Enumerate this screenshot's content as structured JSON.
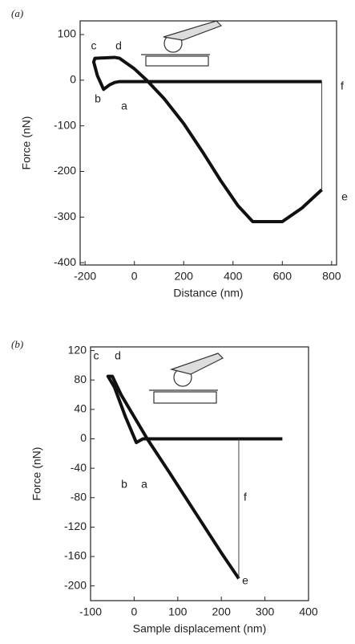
{
  "chart_data": [
    {
      "type": "line",
      "panel": "(a)",
      "xlabel": "Distance (nm)",
      "ylabel": "Force (nN)",
      "xlim": [
        -220,
        820
      ],
      "ylim": [
        -405,
        130
      ],
      "xticks": [
        -200,
        0,
        200,
        400,
        600,
        800
      ],
      "yticks": [
        -400,
        -300,
        -200,
        -100,
        0,
        100
      ],
      "series": [
        {
          "color": "#111111",
          "width": 4,
          "x": [
            760,
            400,
            100,
            -60,
            -80,
            -100,
            -125,
            -150,
            -165,
            -160,
            -80,
            -60,
            0,
            50,
            120,
            200,
            280,
            350,
            420,
            480,
            600,
            680,
            760
          ],
          "values": [
            -3,
            -3,
            -3,
            -3,
            -5,
            -10,
            -20,
            10,
            40,
            48,
            50,
            48,
            25,
            0,
            -40,
            -95,
            -160,
            -220,
            -275,
            -310,
            -310,
            -280,
            -240
          ]
        },
        {
          "color": "#444444",
          "width": 1,
          "x": [
            760,
            760
          ],
          "values": [
            -240,
            -3
          ]
        }
      ],
      "annotations": [
        "c",
        "d",
        "b",
        "a",
        "f",
        "e"
      ]
    },
    {
      "type": "line",
      "panel": "(b)",
      "xlabel": "Sample displacement (nm)",
      "ylabel": "Force (nN)",
      "xlim": [
        -100,
        400
      ],
      "ylim": [
        -220,
        125
      ],
      "xticks": [
        -100,
        0,
        100,
        200,
        300,
        400
      ],
      "yticks": [
        -200,
        -160,
        -120,
        -80,
        -40,
        0,
        40,
        80,
        120
      ],
      "series": [
        {
          "color": "#111111",
          "width": 4,
          "x": [
            340,
            200,
            60,
            20,
            5,
            -20,
            -45,
            -60,
            -50,
            -30,
            0,
            30,
            80,
            140,
            200,
            240
          ],
          "values": [
            0,
            0,
            0,
            0,
            -5,
            30,
            70,
            85,
            85,
            60,
            30,
            0,
            -45,
            -100,
            -155,
            -190
          ]
        },
        {
          "color": "#444444",
          "width": 1,
          "x": [
            240,
            240
          ],
          "values": [
            -190,
            0
          ]
        }
      ],
      "annotations": [
        "c",
        "d",
        "b",
        "a",
        "f",
        "e"
      ]
    }
  ]
}
